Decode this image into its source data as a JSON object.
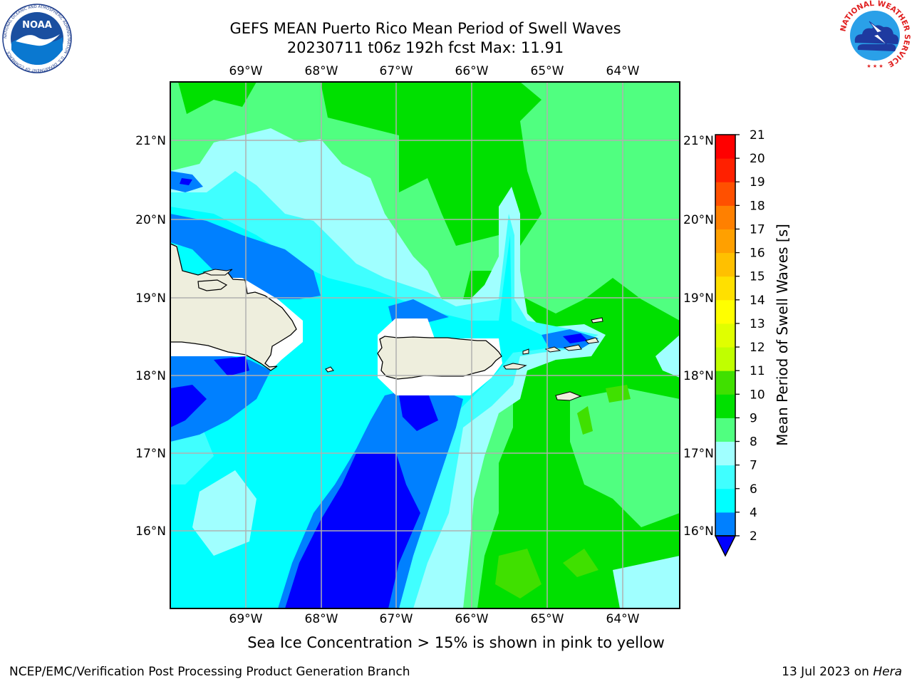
{
  "title": {
    "line1": "GEFS MEAN Puerto Rico Mean Period of Swell Waves",
    "line2": "20230711 t06z 192h fcst   Max: 11.91"
  },
  "logos": {
    "left": "noaa-logo",
    "right": "nws-logo",
    "noaa_text": "NOAA",
    "noaa_ring": "NATIONAL OCEANIC AND ATMOSPHERIC ADMINISTRATION · U.S. DEPARTMENT OF COMMERCE ·",
    "nws_ring": "NATIONAL WEATHER SERVICE"
  },
  "map": {
    "lon_ticks": [
      "69°W",
      "68°W",
      "67°W",
      "66°W",
      "65°W",
      "64°W"
    ],
    "lat_ticks": [
      "21°N",
      "20°N",
      "19°N",
      "18°N",
      "17°N",
      "16°N"
    ],
    "ocean_base_color": "#00e000",
    "land_color": "#eeeedd"
  },
  "colorbar": {
    "label": "Mean Period of Swell Waves [s]",
    "ticks": [
      "2",
      "4",
      "6",
      "7",
      "8",
      "9",
      "10",
      "11",
      "12",
      "13",
      "14",
      "15",
      "16",
      "17",
      "18",
      "19",
      "20",
      "21"
    ],
    "extend_color": "#0000ff",
    "colors": [
      "#0080ff",
      "#00ffff",
      "#40ffff",
      "#a0ffff",
      "#50ff80",
      "#00e000",
      "#40e000",
      "#c0ff00",
      "#e0ff00",
      "#ffff00",
      "#ffe000",
      "#ffc000",
      "#ffa000",
      "#ff8000",
      "#ff5000",
      "#ff2000",
      "#ff0000"
    ]
  },
  "caption": "Sea Ice Concentration > 15% is shown in pink to yellow",
  "credit": {
    "left": "NCEP/EMC/Verification Post Processing Product Generation Branch",
    "right_date": "13 Jul 2023 on ",
    "right_host": "Hera"
  }
}
